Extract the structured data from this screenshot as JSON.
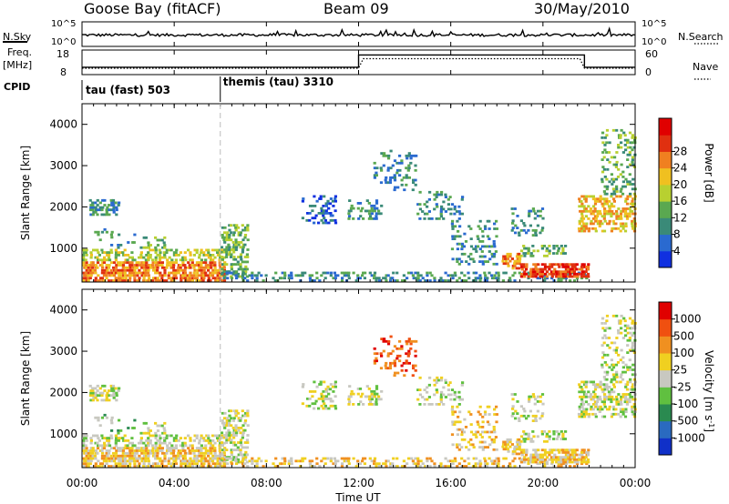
{
  "header": {
    "station": "Goose Bay (fitACF)",
    "beam": "Beam 09",
    "date": "30/May/2010"
  },
  "nsky_panel": {
    "left_label": "N.Sky",
    "right_label": "N.Search",
    "left_ticks": [
      "10^5",
      "10^0"
    ],
    "right_ticks": [
      "10^5",
      "10^0"
    ]
  },
  "freq_panel": {
    "left_label_line1": "Freq.",
    "left_label_line2": "[MHz]",
    "right_label": "Nave",
    "left_ticks": [
      "18",
      "8"
    ],
    "right_ticks": [
      "60",
      "0"
    ],
    "freq_steps": [
      {
        "start_h": 0,
        "end_h": 12,
        "value": 11
      },
      {
        "start_h": 12,
        "end_h": 21.8,
        "value": 16
      },
      {
        "start_h": 21.8,
        "end_h": 24,
        "value": 11
      }
    ]
  },
  "cpid": {
    "label": "CPID",
    "modes": [
      {
        "name": "tau (fast) 503",
        "start_h": 0
      },
      {
        "name": "themis (tau) 3310",
        "start_h": 6
      }
    ]
  },
  "x_axis": {
    "label": "Time UT",
    "ticks": [
      "00:00",
      "04:00",
      "08:00",
      "12:00",
      "16:00",
      "20:00",
      "00:00"
    ]
  },
  "chart_data": [
    {
      "type": "heatmap",
      "title": "",
      "ylabel": "Slant Range [km]",
      "xlabel": "Time UT",
      "yticks": [
        1000,
        2000,
        3000,
        4000
      ],
      "ylim": [
        180,
        4500
      ],
      "xlim": [
        0,
        24
      ],
      "colorbar": {
        "label": "Power [dB]",
        "ticks": [
          "4",
          "8",
          "12",
          "16",
          "20",
          "24",
          "28"
        ],
        "colors": [
          "#1030e0",
          "#2a6ad0",
          "#3a8a78",
          "#5aa850",
          "#b8d030",
          "#f0c020",
          "#f08020",
          "#e03010",
          "#e00000"
        ]
      }
    },
    {
      "type": "heatmap",
      "title": "",
      "ylabel": "Slant Range [km]",
      "xlabel": "Time UT",
      "yticks": [
        1000,
        2000,
        3000,
        4000
      ],
      "ylim": [
        180,
        4500
      ],
      "xlim": [
        0,
        24
      ],
      "colorbar": {
        "label": "Velocity [m s^-1]",
        "ticks": [
          "1000",
          "500",
          "100",
          "25",
          "-25",
          "-100",
          "-500",
          "-1000"
        ],
        "colors": [
          "#1030c8",
          "#2a6ac0",
          "#2a8a50",
          "#60c040",
          "#c8c8c0",
          "#f0d020",
          "#f09020",
          "#f05010",
          "#e00000"
        ]
      }
    }
  ]
}
